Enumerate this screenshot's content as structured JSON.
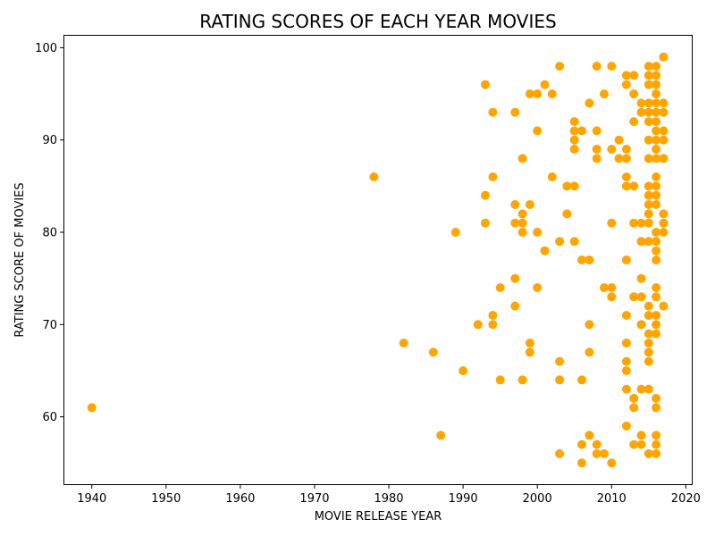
{
  "chart_data": {
    "type": "scatter",
    "title": "RATING SCORES OF EACH YEAR MOVIES",
    "xlabel": "MOVIE RELEASE YEAR",
    "ylabel": "RATING SCORE OF MOVIES",
    "xlim": [
      1936.3,
      2020.8
    ],
    "ylim": [
      52.7,
      101.3
    ],
    "xticks": [
      1940,
      1950,
      1960,
      1970,
      1980,
      1990,
      2000,
      2010,
      2020
    ],
    "yticks": [
      60,
      70,
      80,
      90,
      100
    ],
    "grid": false,
    "legend": "none",
    "marker_color": "#FFA500",
    "points": [
      [
        1940,
        61
      ],
      [
        1978,
        86
      ],
      [
        1982,
        68
      ],
      [
        1986,
        67
      ],
      [
        1987,
        58
      ],
      [
        1989,
        80
      ],
      [
        1990,
        65
      ],
      [
        1992,
        70
      ],
      [
        1993,
        96
      ],
      [
        1993,
        84
      ],
      [
        1993,
        81
      ],
      [
        1994,
        93
      ],
      [
        1994,
        86
      ],
      [
        1994,
        71
      ],
      [
        1994,
        70
      ],
      [
        1995,
        74
      ],
      [
        1995,
        64
      ],
      [
        1997,
        93
      ],
      [
        1997,
        83
      ],
      [
        1997,
        81
      ],
      [
        1997,
        75
      ],
      [
        1997,
        72
      ],
      [
        1998,
        88
      ],
      [
        1998,
        82
      ],
      [
        1998,
        81
      ],
      [
        1998,
        80
      ],
      [
        1998,
        64
      ],
      [
        1999,
        95
      ],
      [
        1999,
        83
      ],
      [
        1999,
        68
      ],
      [
        1999,
        67
      ],
      [
        2000,
        95
      ],
      [
        2000,
        91
      ],
      [
        2000,
        80
      ],
      [
        2000,
        74
      ],
      [
        2001,
        96
      ],
      [
        2001,
        78
      ],
      [
        2002,
        95
      ],
      [
        2002,
        86
      ],
      [
        2003,
        98
      ],
      [
        2003,
        79
      ],
      [
        2003,
        66
      ],
      [
        2003,
        64
      ],
      [
        2003,
        56
      ],
      [
        2004,
        85
      ],
      [
        2004,
        82
      ],
      [
        2005,
        92
      ],
      [
        2005,
        91
      ],
      [
        2005,
        90
      ],
      [
        2005,
        89
      ],
      [
        2005,
        85
      ],
      [
        2005,
        79
      ],
      [
        2006,
        91
      ],
      [
        2006,
        77
      ],
      [
        2006,
        64
      ],
      [
        2006,
        57
      ],
      [
        2006,
        55
      ],
      [
        2007,
        94
      ],
      [
        2007,
        77
      ],
      [
        2007,
        70
      ],
      [
        2007,
        67
      ],
      [
        2007,
        58
      ],
      [
        2008,
        98
      ],
      [
        2008,
        91
      ],
      [
        2008,
        89
      ],
      [
        2008,
        88
      ],
      [
        2008,
        57
      ],
      [
        2008,
        56
      ],
      [
        2009,
        95
      ],
      [
        2009,
        74
      ],
      [
        2009,
        56
      ],
      [
        2010,
        98
      ],
      [
        2010,
        89
      ],
      [
        2010,
        81
      ],
      [
        2010,
        74
      ],
      [
        2010,
        73
      ],
      [
        2010,
        55
      ],
      [
        2011,
        90
      ],
      [
        2011,
        88
      ],
      [
        2012,
        97
      ],
      [
        2012,
        96
      ],
      [
        2012,
        89
      ],
      [
        2012,
        88
      ],
      [
        2012,
        86
      ],
      [
        2012,
        85
      ],
      [
        2012,
        77
      ],
      [
        2012,
        71
      ],
      [
        2012,
        68
      ],
      [
        2012,
        66
      ],
      [
        2012,
        65
      ],
      [
        2012,
        63
      ],
      [
        2012,
        59
      ],
      [
        2013,
        97
      ],
      [
        2013,
        95
      ],
      [
        2013,
        92
      ],
      [
        2013,
        85
      ],
      [
        2013,
        81
      ],
      [
        2013,
        73
      ],
      [
        2013,
        62
      ],
      [
        2013,
        61
      ],
      [
        2013,
        57
      ],
      [
        2014,
        94
      ],
      [
        2014,
        93
      ],
      [
        2014,
        81
      ],
      [
        2014,
        79
      ],
      [
        2014,
        75
      ],
      [
        2014,
        73
      ],
      [
        2014,
        70
      ],
      [
        2014,
        63
      ],
      [
        2014,
        58
      ],
      [
        2014,
        57
      ],
      [
        2015,
        98
      ],
      [
        2015,
        97
      ],
      [
        2015,
        96
      ],
      [
        2015,
        94
      ],
      [
        2015,
        93
      ],
      [
        2015,
        92
      ],
      [
        2015,
        90
      ],
      [
        2015,
        88
      ],
      [
        2015,
        85
      ],
      [
        2015,
        84
      ],
      [
        2015,
        83
      ],
      [
        2015,
        82
      ],
      [
        2015,
        81
      ],
      [
        2015,
        79
      ],
      [
        2015,
        72
      ],
      [
        2015,
        71
      ],
      [
        2015,
        69
      ],
      [
        2015,
        68
      ],
      [
        2015,
        67
      ],
      [
        2015,
        66
      ],
      [
        2015,
        63
      ],
      [
        2015,
        56
      ],
      [
        2016,
        98
      ],
      [
        2016,
        97
      ],
      [
        2016,
        96
      ],
      [
        2016,
        95
      ],
      [
        2016,
        94
      ],
      [
        2016,
        93
      ],
      [
        2016,
        92
      ],
      [
        2016,
        91
      ],
      [
        2016,
        90
      ],
      [
        2016,
        89
      ],
      [
        2016,
        88
      ],
      [
        2016,
        86
      ],
      [
        2016,
        85
      ],
      [
        2016,
        84
      ],
      [
        2016,
        83
      ],
      [
        2016,
        80
      ],
      [
        2016,
        79
      ],
      [
        2016,
        78
      ],
      [
        2016,
        77
      ],
      [
        2016,
        74
      ],
      [
        2016,
        73
      ],
      [
        2016,
        71
      ],
      [
        2016,
        70
      ],
      [
        2016,
        69
      ],
      [
        2016,
        62
      ],
      [
        2016,
        61
      ],
      [
        2016,
        58
      ],
      [
        2016,
        57
      ],
      [
        2016,
        56
      ],
      [
        2017,
        99
      ],
      [
        2017,
        94
      ],
      [
        2017,
        93
      ],
      [
        2017,
        91
      ],
      [
        2017,
        90
      ],
      [
        2017,
        88
      ],
      [
        2017,
        82
      ],
      [
        2017,
        81
      ],
      [
        2017,
        80
      ],
      [
        2017,
        72
      ]
    ]
  }
}
